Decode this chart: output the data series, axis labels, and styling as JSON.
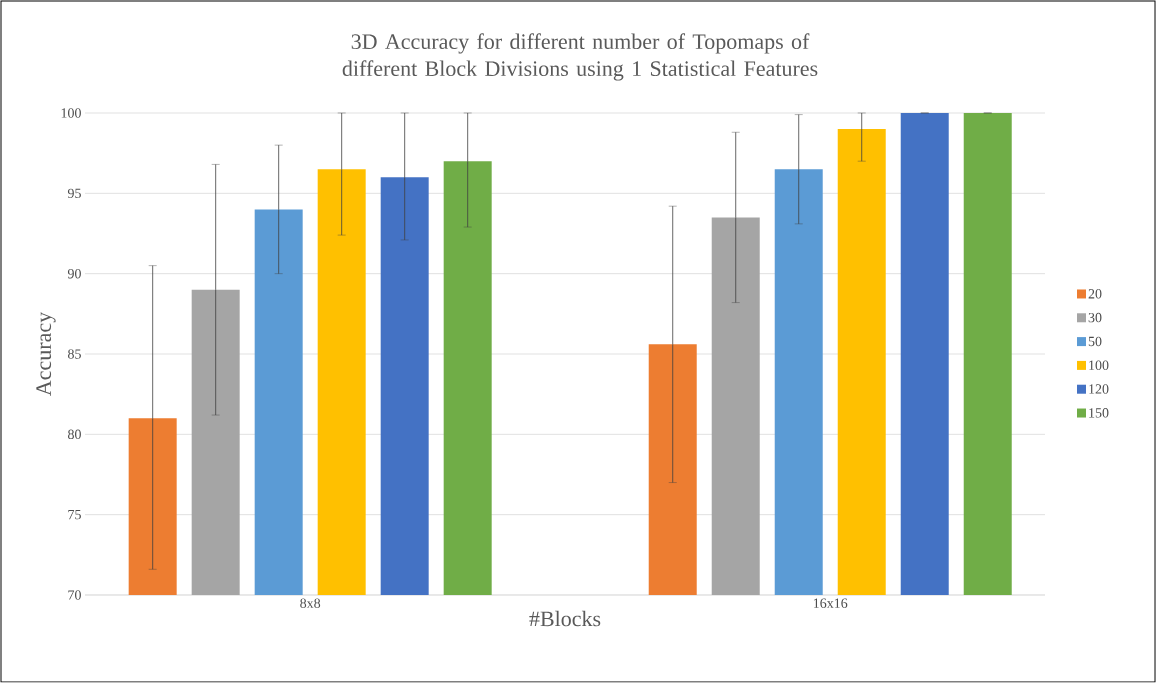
{
  "chart_data": {
    "type": "bar",
    "title": "3D Accuracy for different number of Topomaps of different Block Divisions using 1 Statistical Features",
    "xlabel": "#Blocks",
    "ylabel": "Accuracy",
    "categories": [
      "8x8",
      "16x16"
    ],
    "series": [
      {
        "name": "20",
        "color": "#ed7d31",
        "values": [
          81,
          85.6
        ],
        "errors": [
          [
            71.6,
            90.5
          ],
          8.6
        ]
      },
      {
        "name": "30",
        "color": "#a5a5a5",
        "values": [
          89,
          93.5
        ],
        "errors": [
          7.8,
          5.3
        ]
      },
      {
        "name": "50",
        "color": "#5b9bd5",
        "values": [
          94,
          96.5
        ],
        "errors": [
          4,
          3.4
        ]
      },
      {
        "name": "100",
        "color": "#ffc000",
        "values": [
          96.5,
          99
        ],
        "errors": [
          [
            92.4,
            100
          ],
          [
            97,
            100
          ]
        ]
      },
      {
        "name": "120",
        "color": "#4472c4",
        "values": [
          96,
          100
        ],
        "errors": [
          [
            92.1,
            100
          ],
          0
        ]
      },
      {
        "name": "150",
        "color": "#70ad47",
        "values": [
          97,
          100
        ],
        "errors": [
          [
            92.9,
            100
          ],
          0
        ]
      }
    ],
    "ylim": [
      70,
      100
    ],
    "yticks": [
      70,
      75,
      80,
      85,
      90,
      95,
      100
    ],
    "grid": "y",
    "legend": "right"
  }
}
